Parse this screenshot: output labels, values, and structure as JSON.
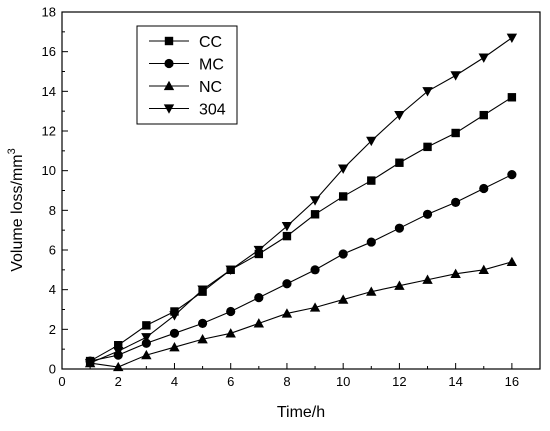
{
  "chart_data": {
    "type": "line",
    "xlabel": "Time/h",
    "ylabel": "Volume loss/mm",
    "ylabel_superscript": "3",
    "xlim": [
      0,
      17
    ],
    "ylim": [
      0,
      18
    ],
    "xticks": [
      0,
      2,
      4,
      6,
      8,
      10,
      12,
      14,
      16
    ],
    "yticks": [
      0,
      2,
      4,
      6,
      8,
      10,
      12,
      14,
      16,
      18
    ],
    "legend_position": "top-left",
    "grid": false,
    "x": [
      1,
      2,
      3,
      4,
      5,
      6,
      7,
      8,
      9,
      10,
      11,
      12,
      13,
      14,
      15,
      16
    ],
    "series": [
      {
        "name": "CC",
        "marker": "square",
        "values": [
          0.4,
          1.2,
          2.2,
          2.9,
          3.9,
          5.0,
          5.8,
          6.7,
          7.8,
          8.7,
          9.5,
          10.4,
          11.2,
          11.9,
          12.8,
          13.7
        ]
      },
      {
        "name": "MC",
        "marker": "circle",
        "values": [
          0.4,
          0.7,
          1.3,
          1.8,
          2.3,
          2.9,
          3.6,
          4.3,
          5.0,
          5.8,
          6.4,
          7.1,
          7.8,
          8.4,
          9.1,
          9.8
        ]
      },
      {
        "name": "NC",
        "marker": "triangle-up",
        "values": [
          0.3,
          0.1,
          0.7,
          1.1,
          1.5,
          1.8,
          2.3,
          2.8,
          3.1,
          3.5,
          3.9,
          4.2,
          4.5,
          4.8,
          5.0,
          5.4
        ]
      },
      {
        "name": "304",
        "marker": "triangle-down",
        "values": [
          0.3,
          0.9,
          1.6,
          2.7,
          4.0,
          5.0,
          6.0,
          7.2,
          8.5,
          10.1,
          11.5,
          12.8,
          14.0,
          14.8,
          15.7,
          16.7
        ]
      }
    ]
  }
}
